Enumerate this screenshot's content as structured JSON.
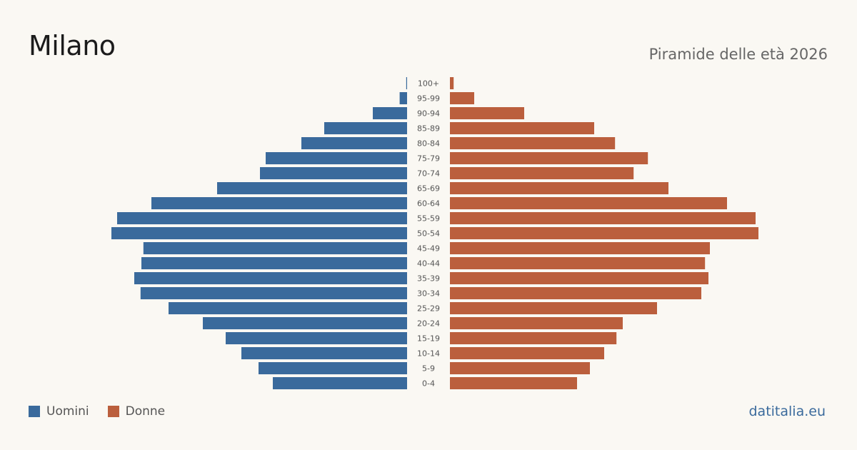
{
  "header": {
    "title": "Milano",
    "subtitle": "Piramide delle età 2026"
  },
  "legend": {
    "men_label": "Uomini",
    "women_label": "Donne"
  },
  "footer": {
    "site": "datitalia.eu"
  },
  "colors": {
    "men": "#3a6a9c",
    "women": "#bb5f3d",
    "background": "#faf8f3"
  },
  "chart_data": {
    "type": "bar",
    "orientation": "horizontal-pyramid",
    "categories": [
      "100+",
      "95-99",
      "90-94",
      "85-89",
      "80-84",
      "75-79",
      "70-74",
      "65-69",
      "60-64",
      "55-59",
      "50-54",
      "45-49",
      "40-44",
      "35-39",
      "30-34",
      "25-29",
      "20-24",
      "15-19",
      "10-14",
      "5-9",
      "0-4"
    ],
    "series": [
      {
        "name": "Uomini",
        "values": [
          0.3,
          2.6,
          12.0,
          29.0,
          37.0,
          49.5,
          51.5,
          66.5,
          89.5,
          101.5,
          103.5,
          92.3,
          93.0,
          95.5,
          93.3,
          83.5,
          71.5,
          63.5,
          58.0,
          52.0,
          47.0
        ]
      },
      {
        "name": "Donne",
        "values": [
          1.3,
          8.5,
          26.0,
          50.5,
          57.8,
          69.3,
          64.3,
          76.5,
          97.0,
          107.0,
          108.0,
          91.0,
          89.3,
          90.5,
          88.0,
          72.5,
          60.5,
          58.3,
          54.0,
          49.0,
          44.5
        ]
      }
    ],
    "xlim": [
      0,
      110
    ]
  }
}
